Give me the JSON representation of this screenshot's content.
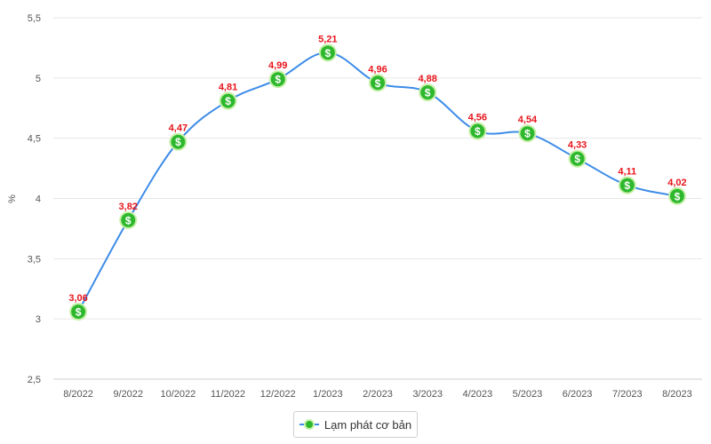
{
  "chart_data": {
    "type": "line",
    "ylabel": "%",
    "ylim": [
      2.5,
      5.5
    ],
    "yticks": [
      "2,5",
      "3",
      "3,5",
      "4",
      "4,5",
      "5",
      "5,5"
    ],
    "yticks_values": [
      2.5,
      3,
      3.5,
      4,
      4.5,
      5,
      5.5
    ],
    "grid": "horizontal",
    "legend_position": "bottom",
    "categories": [
      "8/2022",
      "9/2022",
      "10/2022",
      "11/2022",
      "12/2022",
      "1/2023",
      "2/2023",
      "3/2023",
      "4/2023",
      "5/2023",
      "6/2023",
      "7/2023",
      "8/2023"
    ],
    "series": [
      {
        "name": "Lạm phát cơ bản",
        "values": [
          3.06,
          3.82,
          4.47,
          4.81,
          4.99,
          5.21,
          4.96,
          4.88,
          4.56,
          4.54,
          4.33,
          4.11,
          4.02
        ],
        "labels": [
          "3,06",
          "3,82",
          "4,47",
          "4,81",
          "4,99",
          "5,21",
          "4,96",
          "4,88",
          "4,56",
          "4,54",
          "4,33",
          "4,11",
          "4,02"
        ],
        "line_color": "#3d8ce8",
        "marker_color": "#2eb82e",
        "marker_symbol": "$"
      }
    ],
    "label_color": "#e8151b"
  }
}
